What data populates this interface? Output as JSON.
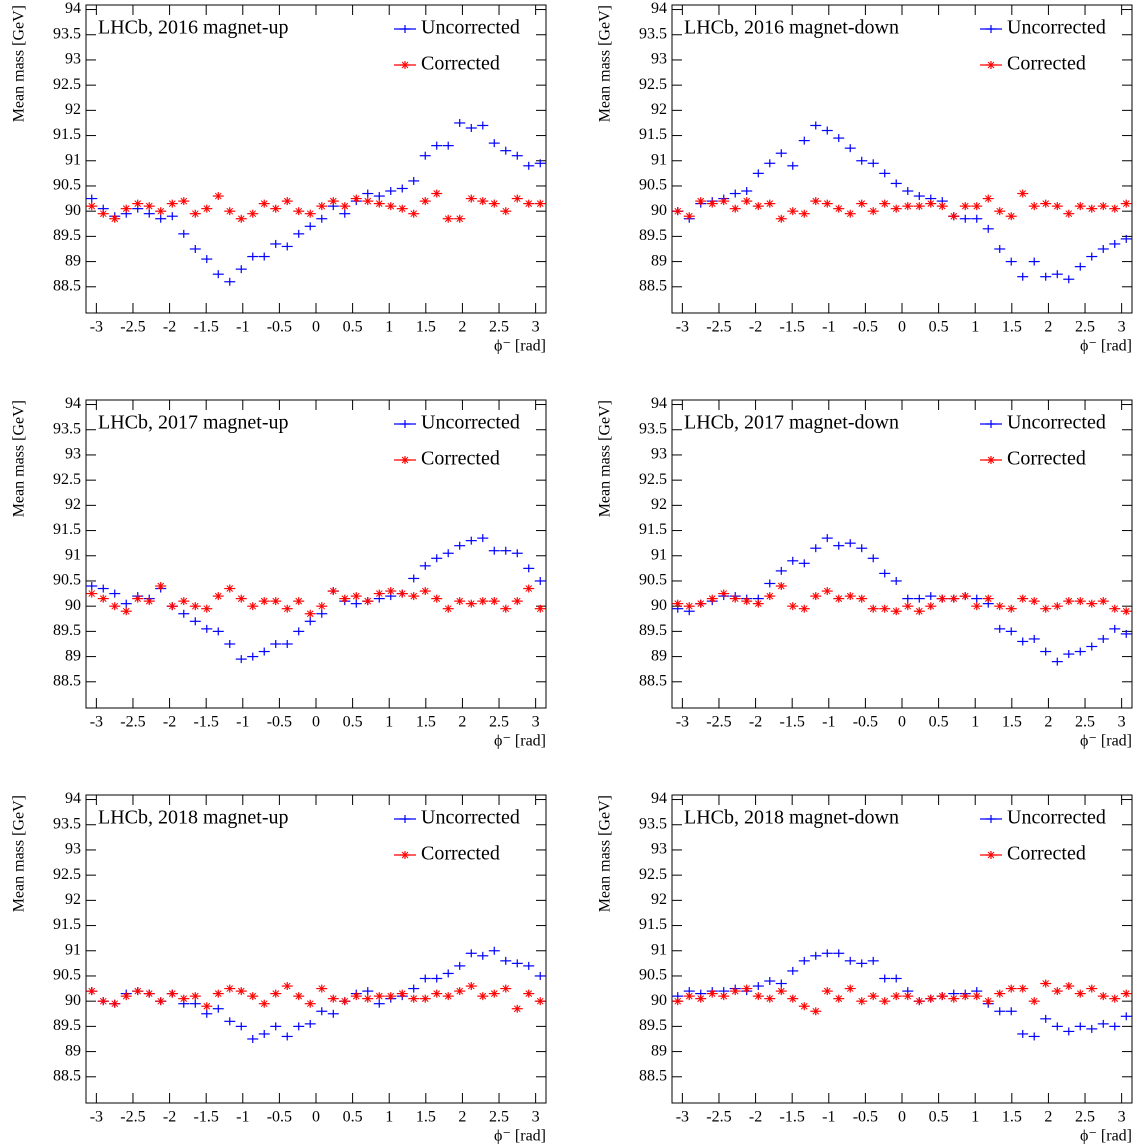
{
  "chart_data": [
    {
      "type": "scatter",
      "title": "LHCb, 2016 magnet-up",
      "xlabel": "ϕ⁻ [rad]",
      "ylabel": "Mean mass [GeV]",
      "x": [
        -3.063,
        -2.906,
        -2.749,
        -2.592,
        -2.435,
        -2.278,
        -2.121,
        -1.963,
        -1.806,
        -1.649,
        -1.492,
        -1.335,
        -1.178,
        -1.021,
        -0.864,
        -0.707,
        -0.55,
        -0.393,
        -0.236,
        -0.079,
        0.079,
        0.236,
        0.393,
        0.55,
        0.707,
        0.864,
        1.021,
        1.178,
        1.335,
        1.492,
        1.649,
        1.806,
        1.963,
        2.121,
        2.278,
        2.435,
        2.592,
        2.749,
        2.906,
        3.063
      ],
      "series": [
        {
          "name": "Uncorrected",
          "color": "#0000ff",
          "marker": "+",
          "values": [
            90.25,
            90.05,
            89.9,
            89.95,
            90.05,
            89.95,
            89.85,
            89.9,
            89.55,
            89.25,
            89.05,
            88.75,
            88.6,
            88.85,
            89.1,
            89.1,
            89.35,
            89.3,
            89.55,
            89.7,
            89.85,
            90.1,
            89.95,
            90.2,
            90.35,
            90.3,
            90.4,
            90.45,
            90.6,
            91.1,
            91.3,
            91.3,
            91.75,
            91.65,
            91.7,
            91.35,
            91.2,
            91.1,
            90.9,
            90.95
          ]
        },
        {
          "name": "Corrected",
          "color": "#ff0000",
          "marker": "*",
          "values": [
            90.1,
            89.95,
            89.85,
            90.05,
            90.15,
            90.1,
            90.0,
            90.15,
            90.2,
            89.95,
            90.05,
            90.3,
            90.0,
            89.85,
            89.95,
            90.15,
            90.05,
            90.2,
            90.0,
            89.95,
            90.1,
            90.2,
            90.1,
            90.25,
            90.2,
            90.15,
            90.1,
            90.05,
            89.95,
            90.2,
            90.35,
            89.85,
            89.85,
            90.25,
            90.2,
            90.15,
            90.0,
            90.25,
            90.15,
            90.15
          ]
        }
      ],
      "xlim": [
        -3.1416,
        3.1416
      ],
      "xticks": [
        -3,
        -2.5,
        -2,
        -1.5,
        -1,
        -0.5,
        0,
        0.5,
        1,
        1.5,
        2,
        2.5,
        3
      ],
      "ylim": [
        87.98,
        94.09
      ],
      "yticks": [
        88.5,
        89,
        89.5,
        90,
        90.5,
        91,
        91.5,
        92,
        92.5,
        93,
        93.5,
        94
      ]
    },
    {
      "type": "scatter",
      "title": "LHCb, 2016 magnet-down",
      "xlabel": "ϕ⁻ [rad]",
      "ylabel": "Mean mass [GeV]",
      "x": [
        -3.063,
        -2.906,
        -2.749,
        -2.592,
        -2.435,
        -2.278,
        -2.121,
        -1.963,
        -1.806,
        -1.649,
        -1.492,
        -1.335,
        -1.178,
        -1.021,
        -0.864,
        -0.707,
        -0.55,
        -0.393,
        -0.236,
        -0.079,
        0.079,
        0.236,
        0.393,
        0.55,
        0.707,
        0.864,
        1.021,
        1.178,
        1.335,
        1.492,
        1.649,
        1.806,
        1.963,
        2.121,
        2.278,
        2.435,
        2.592,
        2.749,
        2.906,
        3.063
      ],
      "series": [
        {
          "name": "Uncorrected",
          "color": "#0000ff",
          "marker": "+",
          "values": [
            90.0,
            89.85,
            90.15,
            90.2,
            90.25,
            90.35,
            90.4,
            90.75,
            90.95,
            91.15,
            90.9,
            91.4,
            91.7,
            91.6,
            91.45,
            91.25,
            91.0,
            90.95,
            90.75,
            90.55,
            90.4,
            90.3,
            90.25,
            90.2,
            89.9,
            89.85,
            89.85,
            89.65,
            89.25,
            89.0,
            88.7,
            89.0,
            88.7,
            88.75,
            88.65,
            88.9,
            89.1,
            89.25,
            89.35,
            89.45
          ]
        },
        {
          "name": "Corrected",
          "color": "#ff0000",
          "marker": "*",
          "values": [
            90.0,
            89.9,
            90.2,
            90.15,
            90.2,
            90.05,
            90.2,
            90.1,
            90.15,
            89.85,
            90.0,
            89.95,
            90.2,
            90.15,
            90.05,
            89.95,
            90.15,
            90.0,
            90.15,
            90.05,
            90.1,
            90.1,
            90.15,
            90.1,
            89.9,
            90.1,
            90.1,
            90.25,
            90.0,
            89.9,
            90.35,
            90.1,
            90.15,
            90.1,
            89.95,
            90.1,
            90.05,
            90.1,
            90.05,
            90.15
          ]
        }
      ],
      "xlim": [
        -3.1416,
        3.1416
      ],
      "xticks": [
        -3,
        -2.5,
        -2,
        -1.5,
        -1,
        -0.5,
        0,
        0.5,
        1,
        1.5,
        2,
        2.5,
        3
      ],
      "ylim": [
        87.98,
        94.09
      ],
      "yticks": [
        88.5,
        89,
        89.5,
        90,
        90.5,
        91,
        91.5,
        92,
        92.5,
        93,
        93.5,
        94
      ]
    },
    {
      "type": "scatter",
      "title": "LHCb, 2017 magnet-up",
      "xlabel": "ϕ⁻ [rad]",
      "ylabel": "Mean mass [GeV]",
      "x": [
        -3.063,
        -2.906,
        -2.749,
        -2.592,
        -2.435,
        -2.278,
        -2.121,
        -1.963,
        -1.806,
        -1.649,
        -1.492,
        -1.335,
        -1.178,
        -1.021,
        -0.864,
        -0.707,
        -0.55,
        -0.393,
        -0.236,
        -0.079,
        0.079,
        0.236,
        0.393,
        0.55,
        0.707,
        0.864,
        1.021,
        1.178,
        1.335,
        1.492,
        1.649,
        1.806,
        1.963,
        2.121,
        2.278,
        2.435,
        2.592,
        2.749,
        2.906,
        3.063
      ],
      "series": [
        {
          "name": "Uncorrected",
          "color": "#0000ff",
          "marker": "+",
          "values": [
            90.4,
            90.35,
            90.25,
            90.05,
            90.2,
            90.15,
            90.35,
            90.0,
            89.85,
            89.7,
            89.55,
            89.5,
            89.25,
            88.95,
            89.0,
            89.1,
            89.25,
            89.25,
            89.5,
            89.7,
            89.85,
            90.3,
            90.1,
            90.05,
            90.1,
            90.15,
            90.2,
            90.25,
            90.55,
            90.8,
            90.95,
            91.05,
            91.2,
            91.3,
            91.35,
            91.1,
            91.1,
            91.05,
            90.75,
            90.5
          ]
        },
        {
          "name": "Corrected",
          "color": "#ff0000",
          "marker": "*",
          "values": [
            90.25,
            90.15,
            90.0,
            89.9,
            90.15,
            90.1,
            90.4,
            90.0,
            90.1,
            90.0,
            89.95,
            90.2,
            90.35,
            90.15,
            90.0,
            90.1,
            90.1,
            89.95,
            90.1,
            89.85,
            90.0,
            90.3,
            90.15,
            90.2,
            90.1,
            90.25,
            90.3,
            90.25,
            90.2,
            90.3,
            90.15,
            89.95,
            90.1,
            90.05,
            90.1,
            90.1,
            89.95,
            90.1,
            90.35,
            89.95
          ]
        }
      ],
      "xlim": [
        -3.1416,
        3.1416
      ],
      "xticks": [
        -3,
        -2.5,
        -2,
        -1.5,
        -1,
        -0.5,
        0,
        0.5,
        1,
        1.5,
        2,
        2.5,
        3
      ],
      "ylim": [
        87.98,
        94.09
      ],
      "yticks": [
        88.5,
        89,
        89.5,
        90,
        90.5,
        91,
        91.5,
        92,
        92.5,
        93,
        93.5,
        94
      ]
    },
    {
      "type": "scatter",
      "title": "LHCb, 2017 magnet-down",
      "xlabel": "ϕ⁻ [rad]",
      "ylabel": "Mean mass [GeV]",
      "x": [
        -3.063,
        -2.906,
        -2.749,
        -2.592,
        -2.435,
        -2.278,
        -2.121,
        -1.963,
        -1.806,
        -1.649,
        -1.492,
        -1.335,
        -1.178,
        -1.021,
        -0.864,
        -0.707,
        -0.55,
        -0.393,
        -0.236,
        -0.079,
        0.079,
        0.236,
        0.393,
        0.55,
        0.707,
        0.864,
        1.021,
        1.178,
        1.335,
        1.492,
        1.649,
        1.806,
        1.963,
        2.121,
        2.278,
        2.435,
        2.592,
        2.749,
        2.906,
        3.063
      ],
      "series": [
        {
          "name": "Uncorrected",
          "color": "#0000ff",
          "marker": "+",
          "values": [
            89.95,
            89.9,
            90.05,
            90.1,
            90.2,
            90.2,
            90.15,
            90.15,
            90.45,
            90.7,
            90.9,
            90.85,
            91.15,
            91.35,
            91.2,
            91.25,
            91.15,
            90.95,
            90.65,
            90.5,
            90.15,
            90.15,
            90.2,
            90.15,
            90.15,
            90.2,
            90.15,
            90.05,
            89.55,
            89.5,
            89.3,
            89.35,
            89.1,
            88.9,
            89.05,
            89.1,
            89.2,
            89.35,
            89.55,
            89.45
          ]
        },
        {
          "name": "Corrected",
          "color": "#ff0000",
          "marker": "*",
          "values": [
            90.05,
            90.0,
            90.05,
            90.15,
            90.25,
            90.15,
            90.1,
            90.05,
            90.2,
            90.4,
            90.0,
            89.95,
            90.2,
            90.3,
            90.15,
            90.2,
            90.15,
            89.95,
            89.95,
            89.9,
            90.0,
            89.9,
            90.0,
            90.15,
            90.15,
            90.2,
            90.0,
            90.15,
            90.0,
            89.95,
            90.15,
            90.1,
            89.95,
            90.0,
            90.1,
            90.1,
            90.05,
            90.1,
            89.95,
            89.9
          ]
        }
      ],
      "xlim": [
        -3.1416,
        3.1416
      ],
      "xticks": [
        -3,
        -2.5,
        -2,
        -1.5,
        -1,
        -0.5,
        0,
        0.5,
        1,
        1.5,
        2,
        2.5,
        3
      ],
      "ylim": [
        87.98,
        94.09
      ],
      "yticks": [
        88.5,
        89,
        89.5,
        90,
        90.5,
        91,
        91.5,
        92,
        92.5,
        93,
        93.5,
        94
      ]
    },
    {
      "type": "scatter",
      "title": "LHCb, 2018 magnet-up",
      "xlabel": "ϕ⁻ [rad]",
      "ylabel": "Mean mass [GeV]",
      "x": [
        -3.063,
        -2.906,
        -2.749,
        -2.592,
        -2.435,
        -2.278,
        -2.121,
        -1.963,
        -1.806,
        -1.649,
        -1.492,
        -1.335,
        -1.178,
        -1.021,
        -0.864,
        -0.707,
        -0.55,
        -0.393,
        -0.236,
        -0.079,
        0.079,
        0.236,
        0.393,
        0.55,
        0.707,
        0.864,
        1.021,
        1.178,
        1.335,
        1.492,
        1.649,
        1.806,
        1.963,
        2.121,
        2.278,
        2.435,
        2.592,
        2.749,
        2.906,
        3.063
      ],
      "series": [
        {
          "name": "Uncorrected",
          "color": "#0000ff",
          "marker": "+",
          "values": [
            90.2,
            90.0,
            89.95,
            90.15,
            90.2,
            90.15,
            90.0,
            90.15,
            89.95,
            89.95,
            89.75,
            89.85,
            89.6,
            89.5,
            89.25,
            89.35,
            89.5,
            89.3,
            89.5,
            89.55,
            89.8,
            89.75,
            90.0,
            90.15,
            90.2,
            89.95,
            90.05,
            90.1,
            90.25,
            90.45,
            90.45,
            90.55,
            90.7,
            90.95,
            90.9,
            91.0,
            90.8,
            90.75,
            90.7,
            90.5
          ]
        },
        {
          "name": "Corrected",
          "color": "#ff0000",
          "marker": "*",
          "values": [
            90.2,
            90.0,
            89.95,
            90.1,
            90.2,
            90.15,
            90.0,
            90.15,
            90.05,
            90.1,
            89.9,
            90.15,
            90.25,
            90.2,
            90.1,
            89.95,
            90.15,
            90.3,
            90.1,
            89.95,
            90.25,
            90.05,
            90.0,
            90.1,
            90.05,
            90.1,
            90.1,
            90.15,
            90.05,
            90.05,
            90.15,
            90.1,
            90.2,
            90.3,
            90.1,
            90.15,
            90.25,
            89.85,
            90.15,
            90.0
          ]
        }
      ],
      "xlim": [
        -3.1416,
        3.1416
      ],
      "xticks": [
        -3,
        -2.5,
        -2,
        -1.5,
        -1,
        -0.5,
        0,
        0.5,
        1,
        1.5,
        2,
        2.5,
        3
      ],
      "ylim": [
        87.98,
        94.09
      ],
      "yticks": [
        88.5,
        89,
        89.5,
        90,
        90.5,
        91,
        91.5,
        92,
        92.5,
        93,
        93.5,
        94
      ]
    },
    {
      "type": "scatter",
      "title": "LHCb, 2018 magnet-down",
      "xlabel": "ϕ⁻ [rad]",
      "ylabel": "Mean mass [GeV]",
      "x": [
        -3.063,
        -2.906,
        -2.749,
        -2.592,
        -2.435,
        -2.278,
        -2.121,
        -1.963,
        -1.806,
        -1.649,
        -1.492,
        -1.335,
        -1.178,
        -1.021,
        -0.864,
        -0.707,
        -0.55,
        -0.393,
        -0.236,
        -0.079,
        0.079,
        0.236,
        0.393,
        0.55,
        0.707,
        0.864,
        1.021,
        1.178,
        1.335,
        1.492,
        1.649,
        1.806,
        1.963,
        2.121,
        2.278,
        2.435,
        2.592,
        2.749,
        2.906,
        3.063
      ],
      "series": [
        {
          "name": "Uncorrected",
          "color": "#0000ff",
          "marker": "+",
          "values": [
            90.1,
            90.2,
            90.15,
            90.2,
            90.2,
            90.25,
            90.2,
            90.3,
            90.4,
            90.35,
            90.6,
            90.8,
            90.9,
            90.95,
            90.95,
            90.8,
            90.75,
            90.8,
            90.45,
            90.45,
            90.2,
            90.0,
            90.05,
            90.1,
            90.15,
            90.15,
            90.2,
            89.95,
            89.8,
            89.8,
            89.35,
            89.3,
            89.65,
            89.5,
            89.4,
            89.5,
            89.45,
            89.55,
            89.5,
            89.7
          ]
        },
        {
          "name": "Corrected",
          "color": "#ff0000",
          "marker": "*",
          "values": [
            90.0,
            90.1,
            90.05,
            90.15,
            90.1,
            90.2,
            90.25,
            90.1,
            90.05,
            90.2,
            90.05,
            89.9,
            89.8,
            90.2,
            90.05,
            90.25,
            90.0,
            90.1,
            90.0,
            90.1,
            90.1,
            90.0,
            90.05,
            90.1,
            90.05,
            90.1,
            90.1,
            90.0,
            90.15,
            90.25,
            90.25,
            90.0,
            90.35,
            90.2,
            90.3,
            90.15,
            90.25,
            90.1,
            90.05,
            90.15
          ]
        }
      ],
      "xlim": [
        -3.1416,
        3.1416
      ],
      "xticks": [
        -3,
        -2.5,
        -2,
        -1.5,
        -1,
        -0.5,
        0,
        0.5,
        1,
        1.5,
        2,
        2.5,
        3
      ],
      "ylim": [
        87.98,
        94.09
      ],
      "yticks": [
        88.5,
        89,
        89.5,
        90,
        90.5,
        91,
        91.5,
        92,
        92.5,
        93,
        93.5,
        94
      ]
    }
  ]
}
